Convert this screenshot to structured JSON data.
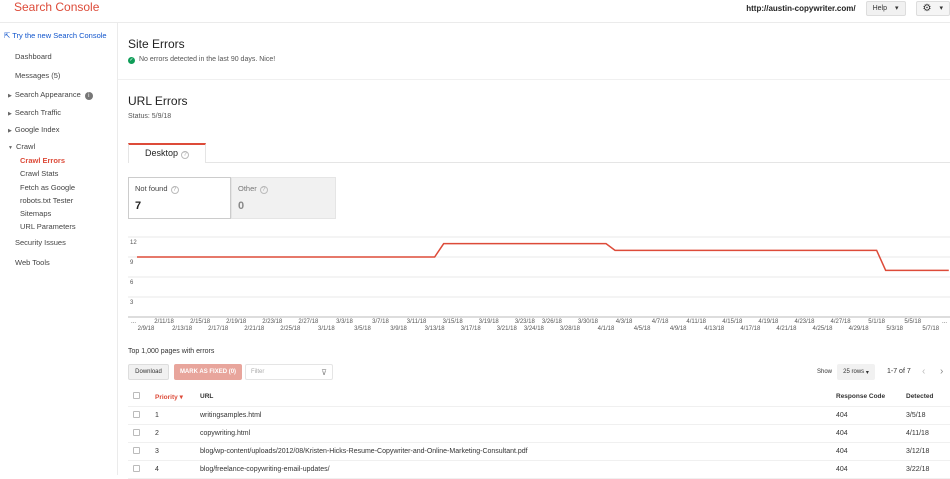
{
  "app": {
    "title": "Search Console",
    "site": "http://austin-copywriter.com/",
    "help": "Help"
  },
  "sidebar": {
    "new_console": "Try the new Search Console",
    "items": [
      {
        "label": "Dashboard"
      },
      {
        "label": "Messages (5)"
      },
      {
        "label": "Search Appearance"
      },
      {
        "label": "Search Traffic"
      },
      {
        "label": "Google Index"
      },
      {
        "label": "Crawl"
      },
      {
        "label": "Crawl Errors"
      },
      {
        "label": "Crawl Stats"
      },
      {
        "label": "Fetch as Google"
      },
      {
        "label": "robots.txt Tester"
      },
      {
        "label": "Sitemaps"
      },
      {
        "label": "URL Parameters"
      },
      {
        "label": "Security Issues"
      },
      {
        "label": "Web Tools"
      }
    ]
  },
  "site_errors": {
    "title": "Site Errors",
    "message": "No errors detected in the last 90 days. Nice!"
  },
  "url_errors": {
    "title": "URL Errors",
    "status": "Status: 5/9/18",
    "tab": "Desktop",
    "cards": [
      {
        "label": "Not found",
        "value": "7"
      },
      {
        "label": "Other",
        "value": "0"
      }
    ]
  },
  "chart_data": {
    "type": "line",
    "color": "#dd4b39",
    "ylim": [
      0,
      12
    ],
    "yticks": [
      "3",
      "6",
      "9",
      "12"
    ],
    "grid": true,
    "points": [
      {
        "x": "2/8/18",
        "y": 9
      },
      {
        "x": "3/13/18",
        "y": 9
      },
      {
        "x": "3/14/18",
        "y": 11
      },
      {
        "x": "4/1/18",
        "y": 11
      },
      {
        "x": "4/2/18",
        "y": 10
      },
      {
        "x": "5/1/18",
        "y": 10
      },
      {
        "x": "5/2/18",
        "y": 7
      },
      {
        "x": "5/9/18",
        "y": 7
      }
    ],
    "xticks": [
      "2/9/18",
      "2/11/18",
      "2/13/18",
      "2/15/18",
      "2/17/18",
      "2/19/18",
      "2/21/18",
      "2/23/18",
      "2/25/18",
      "2/27/18",
      "3/1/18",
      "3/3/18",
      "3/5/18",
      "3/7/18",
      "3/9/18",
      "3/11/18",
      "3/13/18",
      "3/15/18",
      "3/17/18",
      "3/19/18",
      "3/21/18",
      "3/23/18",
      "3/24/18",
      "3/26/18",
      "3/28/18",
      "3/30/18",
      "4/1/18",
      "4/3/18",
      "4/5/18",
      "4/7/18",
      "4/9/18",
      "4/11/18",
      "4/13/18",
      "4/15/18",
      "4/17/18",
      "4/19/18",
      "4/21/18",
      "4/23/18",
      "4/25/18",
      "4/27/18",
      "4/29/18",
      "5/1/18",
      "5/3/18",
      "5/5/18",
      "5/7/18"
    ],
    "ellipsis": "..."
  },
  "table": {
    "title": "Top 1,000 pages with errors",
    "download": "Download",
    "mark_fixed": "MARK AS FIXED (0)",
    "filter_placeholder": "Filter",
    "show": "Show",
    "rows_select": "25 rows",
    "pagination": "1-7 of 7",
    "headers": {
      "priority": "Priority",
      "url": "URL",
      "code": "Response Code",
      "detected": "Detected"
    },
    "rows": [
      {
        "priority": "1",
        "url": "writingsamples.html",
        "code": "404",
        "detected": "3/5/18"
      },
      {
        "priority": "2",
        "url": "copywriting.html",
        "code": "404",
        "detected": "4/11/18"
      },
      {
        "priority": "3",
        "url": "blog/wp-content/uploads/2012/08/Kristen-Hicks-Resume-Copywriter-and-Online-Marketing-Consultant.pdf",
        "code": "404",
        "detected": "3/12/18"
      },
      {
        "priority": "4",
        "url": "blog/freelance-copywriting-email-updates/",
        "code": "404",
        "detected": "3/22/18"
      }
    ]
  }
}
